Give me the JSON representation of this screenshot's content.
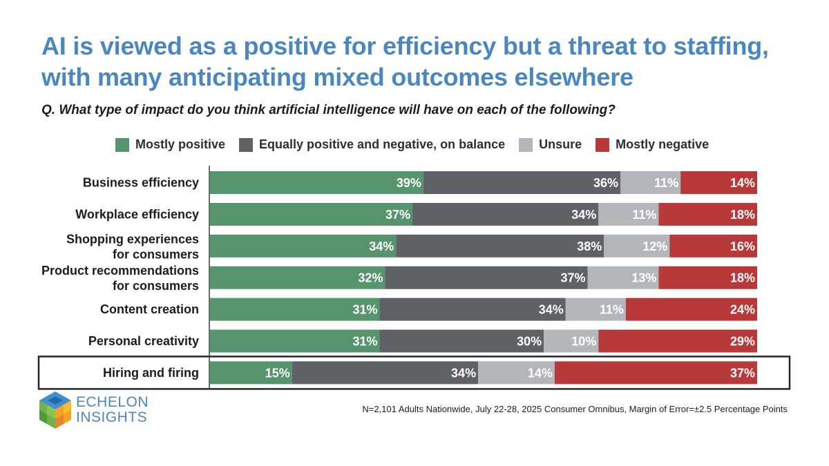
{
  "chart_data": {
    "type": "bar",
    "orientation": "horizontal",
    "stacked": true,
    "title": "AI is viewed as a positive for efficiency but a threat to staffing, with many anticipating mixed outcomes elsewhere",
    "subtitle": "Q. What type of impact do you think artificial intelligence will have on each of the following?",
    "categories": [
      [
        "Business efficiency"
      ],
      [
        "Workplace efficiency"
      ],
      [
        "Shopping experiences",
        "for consumers"
      ],
      [
        "Product recommendations",
        "for consumers"
      ],
      [
        "Content creation"
      ],
      [
        "Personal creativity"
      ],
      [
        "Hiring and firing"
      ]
    ],
    "highlighted_category": "Hiring and firing",
    "series": [
      {
        "name": "Mostly positive",
        "color": "#55946c",
        "values": [
          39,
          37,
          34,
          32,
          31,
          31,
          15
        ]
      },
      {
        "name": "Equally positive and negative, on balance",
        "color": "#5e6266",
        "values": [
          36,
          34,
          38,
          37,
          34,
          30,
          34
        ]
      },
      {
        "name": "Unsure",
        "color": "#b3b6ba",
        "values": [
          11,
          11,
          12,
          13,
          11,
          10,
          14
        ]
      },
      {
        "name": "Mostly negative",
        "color": "#b7393a",
        "values": [
          14,
          18,
          16,
          18,
          24,
          29,
          37
        ]
      }
    ],
    "value_suffix": "%",
    "xlim": [
      0,
      100
    ],
    "legend": "top"
  },
  "footnote": "N=2,101 Adults Nationwide, July 22-28, 2025 Consumer Omnibus, Margin of Error=±2.5 Percentage Points",
  "logo": {
    "line1": "ECHELON",
    "line2": "INSIGHTS"
  }
}
